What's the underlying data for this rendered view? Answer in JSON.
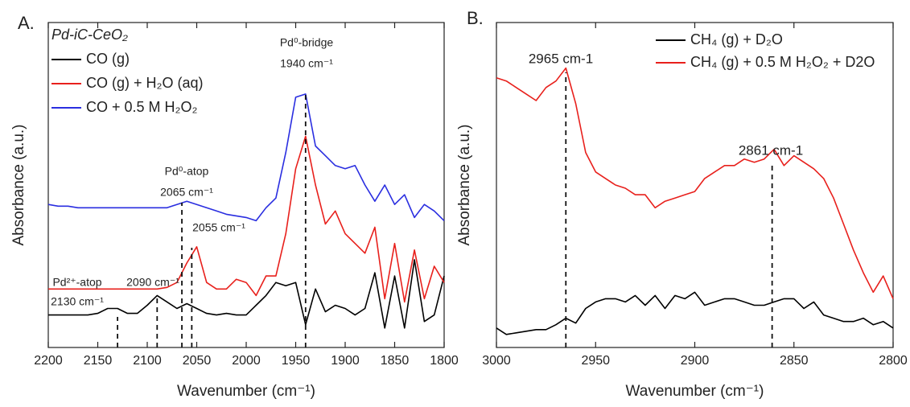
{
  "chart_data": [
    {
      "type": "line",
      "panel_label": "A.",
      "legend_title": "Pd-iC-CeO₂",
      "xlabel": "Wavenumber (cm⁻¹)",
      "ylabel": "Absorbance (a.u.)",
      "xlim": [
        2200,
        1800
      ],
      "xticks": [
        2200,
        2150,
        2100,
        2050,
        2000,
        1950,
        1900,
        1850,
        1800
      ],
      "ylim": [
        0,
        10
      ],
      "x": [
        2200,
        2190,
        2180,
        2170,
        2160,
        2150,
        2140,
        2130,
        2120,
        2110,
        2100,
        2090,
        2080,
        2070,
        2060,
        2050,
        2040,
        2030,
        2020,
        2010,
        2000,
        1990,
        1980,
        1970,
        1960,
        1950,
        1940,
        1930,
        1920,
        1910,
        1900,
        1890,
        1880,
        1870,
        1860,
        1850,
        1840,
        1830,
        1820,
        1810,
        1800
      ],
      "series": [
        {
          "name": "CO (g)",
          "color": "#000000",
          "values": [
            1.0,
            1.0,
            1.0,
            1.0,
            1.0,
            1.05,
            1.2,
            1.2,
            1.05,
            1.05,
            1.3,
            1.6,
            1.4,
            1.2,
            1.35,
            1.2,
            1.05,
            1.0,
            1.05,
            1.0,
            1.0,
            1.3,
            1.6,
            2.0,
            1.9,
            2.0,
            0.7,
            1.8,
            1.1,
            1.3,
            1.2,
            1.0,
            1.2,
            2.3,
            0.6,
            2.2,
            0.6,
            2.7,
            0.8,
            1.0,
            2.2
          ]
        },
        {
          "name": "CO (g) + H₂O (aq)",
          "color": "#e8201c",
          "values": [
            1.8,
            1.8,
            1.8,
            1.8,
            1.8,
            1.8,
            1.8,
            1.8,
            1.8,
            1.8,
            1.8,
            1.8,
            1.85,
            2.0,
            2.6,
            3.1,
            2.0,
            1.8,
            1.8,
            2.1,
            2.0,
            1.6,
            2.2,
            2.2,
            3.5,
            5.5,
            6.5,
            5.0,
            3.8,
            4.2,
            3.5,
            3.2,
            2.9,
            3.7,
            1.5,
            3.2,
            1.4,
            3.0,
            1.5,
            2.5,
            2.0
          ]
        },
        {
          "name": "CO + 0.5 M H₂O₂",
          "color": "#2a2ee0",
          "values": [
            4.4,
            4.35,
            4.35,
            4.3,
            4.3,
            4.3,
            4.3,
            4.3,
            4.3,
            4.3,
            4.3,
            4.3,
            4.3,
            4.4,
            4.5,
            4.4,
            4.3,
            4.2,
            4.1,
            4.05,
            4.0,
            3.9,
            4.3,
            4.6,
            6.0,
            7.7,
            7.8,
            6.2,
            5.9,
            5.6,
            5.5,
            5.6,
            5.0,
            4.5,
            5.0,
            4.4,
            4.7,
            4.0,
            4.4,
            4.2,
            3.9
          ]
        }
      ],
      "annotations": [
        {
          "x": 1940,
          "text": [
            "Pd⁰-bridge",
            "1940 cm⁻¹"
          ]
        },
        {
          "x": 2065,
          "text": [
            "Pd⁰-atop",
            "2065 cm⁻¹"
          ]
        },
        {
          "x": 2055,
          "text": [
            "2055 cm⁻¹"
          ]
        },
        {
          "x": 2090,
          "text": [
            "2090 cm⁻¹"
          ]
        },
        {
          "x": 2130,
          "text": [
            "Pd²⁺-atop",
            "2130 cm⁻¹"
          ]
        }
      ]
    },
    {
      "type": "line",
      "panel_label": "B.",
      "xlabel": "Wavenumber (cm⁻¹)",
      "ylabel": "Absorbance (a.u.)",
      "xlim": [
        3000,
        2800
      ],
      "xticks": [
        3000,
        2950,
        2900,
        2850,
        2800
      ],
      "ylim": [
        0,
        10
      ],
      "x": [
        3000,
        2995,
        2990,
        2985,
        2980,
        2975,
        2970,
        2965,
        2960,
        2955,
        2950,
        2945,
        2940,
        2935,
        2930,
        2925,
        2920,
        2915,
        2910,
        2905,
        2900,
        2895,
        2890,
        2885,
        2880,
        2875,
        2870,
        2865,
        2860,
        2855,
        2850,
        2845,
        2840,
        2835,
        2830,
        2825,
        2820,
        2815,
        2810,
        2805,
        2800
      ],
      "series": [
        {
          "name": "CH₄ (g) + D₂O",
          "color": "#000000",
          "values": [
            0.6,
            0.4,
            0.45,
            0.5,
            0.55,
            0.55,
            0.7,
            0.9,
            0.75,
            1.2,
            1.4,
            1.5,
            1.5,
            1.4,
            1.6,
            1.3,
            1.6,
            1.2,
            1.6,
            1.5,
            1.7,
            1.3,
            1.4,
            1.5,
            1.5,
            1.4,
            1.3,
            1.3,
            1.4,
            1.5,
            1.5,
            1.2,
            1.4,
            1.0,
            0.9,
            0.8,
            0.8,
            0.9,
            0.7,
            0.8,
            0.6
          ]
        },
        {
          "name": "CH₄ (g) + 0.5 M H₂O₂ + D2O",
          "color": "#e8201c",
          "values": [
            8.3,
            8.2,
            8.0,
            7.8,
            7.6,
            8.0,
            8.2,
            8.6,
            7.5,
            6.0,
            5.4,
            5.2,
            5.0,
            4.9,
            4.7,
            4.7,
            4.3,
            4.5,
            4.6,
            4.7,
            4.8,
            5.2,
            5.4,
            5.6,
            5.6,
            5.8,
            5.7,
            5.8,
            6.1,
            5.6,
            5.9,
            5.7,
            5.5,
            5.2,
            4.6,
            3.8,
            3.0,
            2.3,
            1.7,
            2.2,
            1.5
          ]
        }
      ],
      "annotations": [
        {
          "x": 2965,
          "text": [
            "2965 cm-1"
          ]
        },
        {
          "x": 2861,
          "text": [
            "2861 cm-1"
          ]
        }
      ]
    }
  ]
}
